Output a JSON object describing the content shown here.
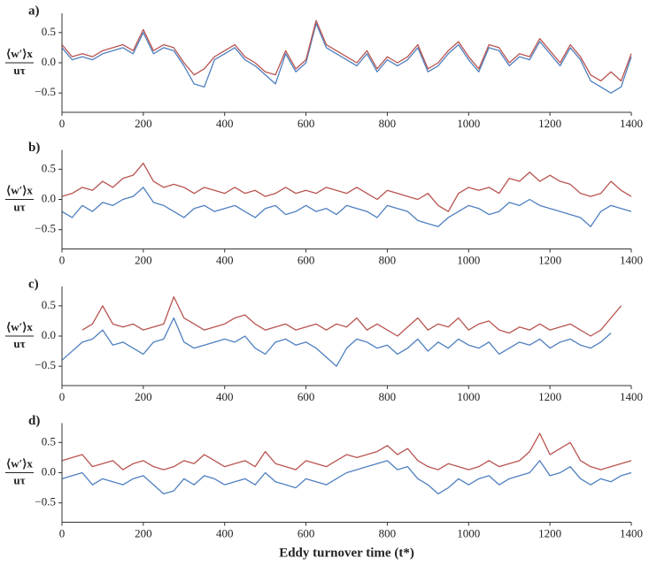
{
  "chart_data": [
    {
      "type": "line",
      "label": "a)",
      "ylabel_top": "⟨w′⟩x",
      "ylabel_bottom": "uτ",
      "x": [
        0,
        25,
        50,
        75,
        100,
        125,
        150,
        175,
        200,
        225,
        250,
        275,
        300,
        325,
        350,
        375,
        400,
        425,
        450,
        475,
        500,
        525,
        550,
        575,
        600,
        625,
        650,
        675,
        700,
        725,
        750,
        775,
        800,
        825,
        850,
        875,
        900,
        925,
        950,
        975,
        1000,
        1025,
        1050,
        1075,
        1100,
        1125,
        1150,
        1175,
        1200,
        1225,
        1250,
        1275,
        1300,
        1325,
        1350,
        1375,
        1400
      ],
      "series": [
        {
          "color": "#4f7fbf",
          "values": [
            0.25,
            0.05,
            0.1,
            0.05,
            0.15,
            0.2,
            0.25,
            0.15,
            0.5,
            0.15,
            0.25,
            0.2,
            -0.05,
            -0.35,
            -0.4,
            0.05,
            0.15,
            0.25,
            0.05,
            -0.05,
            -0.2,
            -0.35,
            0.15,
            -0.15,
            0.0,
            0.65,
            0.25,
            0.15,
            0.05,
            -0.05,
            0.15,
            -0.15,
            0.05,
            -0.05,
            0.05,
            0.25,
            -0.15,
            -0.05,
            0.15,
            0.3,
            0.05,
            -0.15,
            0.25,
            0.2,
            -0.05,
            0.1,
            0.05,
            0.35,
            0.15,
            -0.05,
            0.25,
            0.05,
            -0.3,
            -0.4,
            -0.5,
            -0.4,
            0.1
          ]
        },
        {
          "color": "#b85450",
          "values": [
            0.3,
            0.1,
            0.15,
            0.1,
            0.2,
            0.25,
            0.3,
            0.2,
            0.55,
            0.2,
            0.3,
            0.25,
            0.0,
            -0.2,
            -0.1,
            0.1,
            0.2,
            0.3,
            0.1,
            0.0,
            -0.15,
            -0.2,
            0.2,
            -0.1,
            0.05,
            0.7,
            0.3,
            0.2,
            0.1,
            0.0,
            0.2,
            -0.1,
            0.1,
            0.0,
            0.1,
            0.3,
            -0.1,
            0.0,
            0.2,
            0.35,
            0.1,
            -0.1,
            0.3,
            0.25,
            0.0,
            0.15,
            0.1,
            0.4,
            0.2,
            0.0,
            0.3,
            0.1,
            -0.2,
            -0.3,
            -0.15,
            -0.3,
            0.15
          ]
        }
      ],
      "xlim": [
        0,
        1400
      ],
      "xticks": [
        0,
        200,
        400,
        600,
        800,
        1000,
        1200,
        1400
      ],
      "ylim": [
        -0.82,
        0.82
      ],
      "yticks": [
        {
          "value": -0.5,
          "label": "−0.5"
        },
        {
          "value": 0,
          "label": "0.0"
        },
        0.5
      ]
    },
    {
      "type": "line",
      "label": "b)",
      "ylabel_top": "⟨w′⟩x",
      "ylabel_bottom": "uτ",
      "x": [
        0,
        25,
        50,
        75,
        100,
        125,
        150,
        175,
        200,
        225,
        250,
        275,
        300,
        325,
        350,
        375,
        400,
        425,
        450,
        475,
        500,
        525,
        550,
        575,
        600,
        625,
        650,
        675,
        700,
        725,
        750,
        775,
        800,
        825,
        850,
        875,
        900,
        925,
        950,
        975,
        1000,
        1025,
        1050,
        1075,
        1100,
        1125,
        1150,
        1175,
        1200,
        1225,
        1250,
        1275,
        1300,
        1325,
        1350,
        1375,
        1400
      ],
      "series": [
        {
          "color": "#4f7fbf",
          "values": [
            -0.2,
            -0.3,
            -0.1,
            -0.2,
            -0.05,
            -0.1,
            0.0,
            0.05,
            0.2,
            -0.05,
            -0.1,
            -0.2,
            -0.3,
            -0.15,
            -0.1,
            -0.2,
            -0.15,
            -0.1,
            -0.2,
            -0.3,
            -0.15,
            -0.1,
            -0.25,
            -0.2,
            -0.1,
            -0.2,
            -0.15,
            -0.25,
            -0.1,
            -0.15,
            -0.2,
            -0.3,
            -0.1,
            -0.15,
            -0.2,
            -0.35,
            -0.4,
            -0.45,
            -0.3,
            -0.2,
            -0.1,
            -0.15,
            -0.25,
            -0.2,
            -0.05,
            -0.1,
            0.0,
            -0.1,
            -0.15,
            -0.2,
            -0.25,
            -0.3,
            -0.45,
            -0.2,
            -0.1,
            -0.15,
            -0.2
          ]
        },
        {
          "color": "#b85450",
          "values": [
            0.05,
            0.1,
            0.2,
            0.15,
            0.3,
            0.2,
            0.35,
            0.4,
            0.6,
            0.3,
            0.2,
            0.25,
            0.2,
            0.1,
            0.2,
            0.15,
            0.1,
            0.2,
            0.1,
            0.15,
            0.05,
            0.1,
            0.2,
            0.1,
            0.15,
            0.1,
            0.2,
            0.15,
            0.1,
            0.2,
            0.1,
            0.0,
            0.15,
            0.1,
            0.05,
            0.0,
            0.1,
            -0.1,
            -0.2,
            0.1,
            0.2,
            0.15,
            0.2,
            0.1,
            0.35,
            0.3,
            0.45,
            0.3,
            0.4,
            0.3,
            0.25,
            0.1,
            0.05,
            0.1,
            0.3,
            0.15,
            0.05
          ]
        }
      ],
      "xlim": [
        0,
        1400
      ],
      "xticks": [
        0,
        200,
        400,
        600,
        800,
        1000,
        1200,
        1400
      ],
      "ylim": [
        -0.82,
        0.82
      ],
      "yticks": [
        {
          "value": -0.5,
          "label": "−0.5"
        },
        {
          "value": 0,
          "label": "0.0"
        },
        0.5
      ]
    },
    {
      "type": "line",
      "label": "c)",
      "ylabel_top": "⟨w′⟩x",
      "ylabel_bottom": "uτ",
      "x": [
        0,
        25,
        50,
        75,
        100,
        125,
        150,
        175,
        200,
        225,
        250,
        275,
        300,
        325,
        350,
        375,
        400,
        425,
        450,
        475,
        500,
        525,
        550,
        575,
        600,
        625,
        650,
        675,
        700,
        725,
        750,
        775,
        800,
        825,
        850,
        875,
        900,
        925,
        950,
        975,
        1000,
        1025,
        1050,
        1075,
        1100,
        1125,
        1150,
        1175,
        1200,
        1225,
        1250,
        1275,
        1300,
        1325,
        1350,
        1375,
        1400
      ],
      "series": [
        {
          "color": "#4f7fbf",
          "values": [
            -0.4,
            -0.25,
            -0.1,
            -0.05,
            0.1,
            -0.15,
            -0.1,
            -0.2,
            -0.3,
            -0.1,
            -0.05,
            0.3,
            -0.1,
            -0.2,
            -0.15,
            -0.1,
            -0.05,
            -0.1,
            0.0,
            -0.2,
            -0.3,
            -0.1,
            -0.05,
            -0.15,
            -0.1,
            -0.2,
            -0.35,
            -0.5,
            -0.2,
            -0.05,
            -0.1,
            -0.2,
            -0.15,
            -0.3,
            -0.2,
            -0.05,
            -0.25,
            -0.1,
            -0.2,
            -0.05,
            -0.15,
            -0.2,
            -0.1,
            -0.3,
            -0.2,
            -0.1,
            -0.15,
            -0.05,
            -0.2,
            -0.1,
            -0.05,
            -0.15,
            -0.2,
            -0.1,
            0.05,
            null,
            null
          ]
        },
        {
          "color": "#b85450",
          "values": [
            null,
            null,
            0.1,
            0.2,
            0.5,
            0.2,
            0.15,
            0.2,
            0.1,
            0.15,
            0.2,
            0.65,
            0.3,
            0.2,
            0.1,
            0.15,
            0.2,
            0.3,
            0.35,
            0.2,
            0.1,
            0.15,
            0.2,
            0.1,
            0.15,
            0.2,
            0.1,
            0.2,
            0.15,
            0.3,
            0.1,
            0.2,
            0.1,
            0.0,
            0.15,
            0.3,
            0.1,
            0.2,
            0.15,
            0.3,
            0.1,
            0.2,
            0.25,
            0.1,
            0.05,
            0.15,
            0.1,
            0.2,
            0.1,
            0.15,
            0.2,
            0.1,
            0.0,
            0.1,
            0.3,
            0.5,
            null
          ]
        }
      ],
      "xlim": [
        0,
        1400
      ],
      "xticks": [
        0,
        200,
        400,
        600,
        800,
        1000,
        1200,
        1400
      ],
      "ylim": [
        -0.82,
        0.82
      ],
      "yticks": [
        {
          "value": -0.5,
          "label": "−0.5"
        },
        {
          "value": 0,
          "label": "0.0"
        },
        0.5
      ]
    },
    {
      "type": "line",
      "label": "d)",
      "ylabel_top": "⟨w′⟩x",
      "ylabel_bottom": "uτ",
      "xlabel": "Eddy turnover time (t*)",
      "x": [
        0,
        25,
        50,
        75,
        100,
        125,
        150,
        175,
        200,
        225,
        250,
        275,
        300,
        325,
        350,
        375,
        400,
        425,
        450,
        475,
        500,
        525,
        550,
        575,
        600,
        625,
        650,
        675,
        700,
        725,
        750,
        775,
        800,
        825,
        850,
        875,
        900,
        925,
        950,
        975,
        1000,
        1025,
        1050,
        1075,
        1100,
        1125,
        1150,
        1175,
        1200,
        1225,
        1250,
        1275,
        1300,
        1325,
        1350,
        1375,
        1400
      ],
      "series": [
        {
          "color": "#4f7fbf",
          "values": [
            -0.1,
            -0.05,
            0.0,
            -0.2,
            -0.1,
            -0.15,
            -0.2,
            -0.1,
            -0.05,
            -0.2,
            -0.35,
            -0.3,
            -0.1,
            -0.2,
            -0.05,
            -0.1,
            -0.2,
            -0.15,
            -0.1,
            -0.2,
            0.0,
            -0.15,
            -0.2,
            -0.25,
            -0.1,
            -0.15,
            -0.2,
            -0.1,
            0.0,
            0.05,
            0.1,
            0.15,
            0.2,
            0.05,
            0.1,
            -0.1,
            -0.2,
            -0.35,
            -0.25,
            -0.1,
            -0.2,
            -0.1,
            -0.05,
            -0.2,
            -0.1,
            -0.05,
            0.0,
            0.2,
            -0.05,
            0.0,
            0.1,
            -0.1,
            -0.2,
            -0.1,
            -0.15,
            -0.05,
            0.0
          ]
        },
        {
          "color": "#b85450",
          "values": [
            0.2,
            0.25,
            0.3,
            0.1,
            0.15,
            0.2,
            0.05,
            0.15,
            0.2,
            0.1,
            0.05,
            0.1,
            0.2,
            0.15,
            0.3,
            0.2,
            0.1,
            0.15,
            0.2,
            0.1,
            0.35,
            0.15,
            0.1,
            0.05,
            0.2,
            0.15,
            0.1,
            0.2,
            0.3,
            0.25,
            0.3,
            0.35,
            0.45,
            0.3,
            0.4,
            0.2,
            0.1,
            0.05,
            0.15,
            0.1,
            0.05,
            0.1,
            0.2,
            0.1,
            0.15,
            0.2,
            0.35,
            0.65,
            0.3,
            0.4,
            0.5,
            0.2,
            0.1,
            0.05,
            0.1,
            0.15,
            0.2
          ]
        }
      ],
      "xlim": [
        0,
        1400
      ],
      "xticks": [
        0,
        200,
        400,
        600,
        800,
        1000,
        1200,
        1400
      ],
      "ylim": [
        -0.82,
        0.82
      ],
      "yticks": [
        {
          "value": -0.5,
          "label": "−0.5"
        },
        {
          "value": 0,
          "label": "0.0"
        },
        0.5
      ]
    }
  ]
}
